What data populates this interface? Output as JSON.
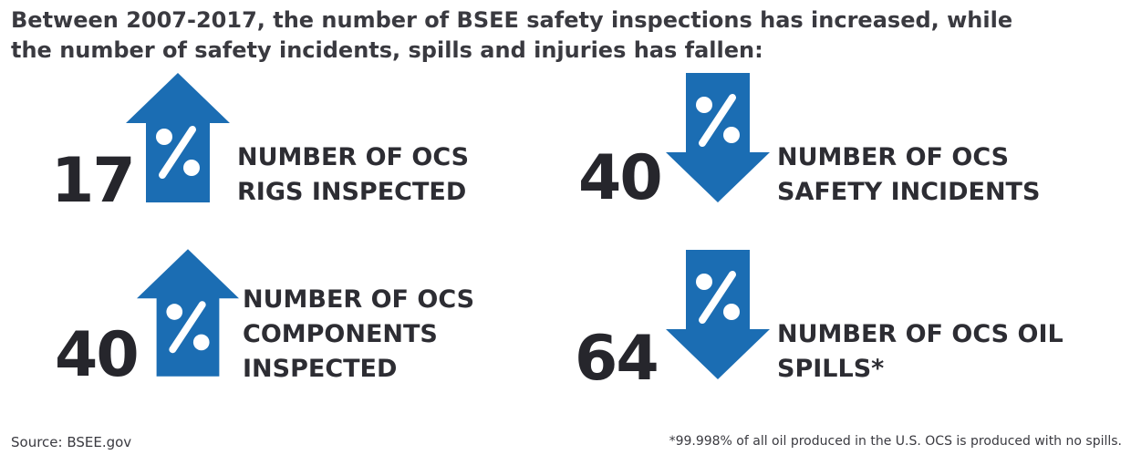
{
  "headline": {
    "line1": "Between 2007-2017, the number of BSEE safety inspections has increased, while",
    "line2": "the number of safety incidents, spills and injuries has fallen:"
  },
  "colors": {
    "arrow_blue": "#1b6db3",
    "text_dark": "#2d2d33"
  },
  "stats": [
    {
      "number": "17",
      "direction": "up",
      "icon": "percent-up-arrow-icon",
      "label_lines": [
        "NUMBER OF OCS",
        "RIGS INSPECTED"
      ]
    },
    {
      "number": "40",
      "direction": "down",
      "icon": "percent-down-arrow-icon",
      "label_lines": [
        "NUMBER OF OCS",
        "SAFETY INCIDENTS"
      ]
    },
    {
      "number": "40",
      "direction": "up",
      "icon": "percent-up-arrow-icon",
      "label_lines": [
        "NUMBER OF OCS",
        "COMPONENTS",
        "INSPECTED"
      ]
    },
    {
      "number": "64",
      "direction": "down",
      "icon": "percent-down-arrow-icon",
      "label_lines": [
        "NUMBER OF OCS OIL",
        "SPILLS*"
      ]
    }
  ],
  "footer": {
    "source": "Source: BSEE.gov",
    "note": "*99.998% of all oil produced in the U.S. OCS is produced with no spills."
  }
}
